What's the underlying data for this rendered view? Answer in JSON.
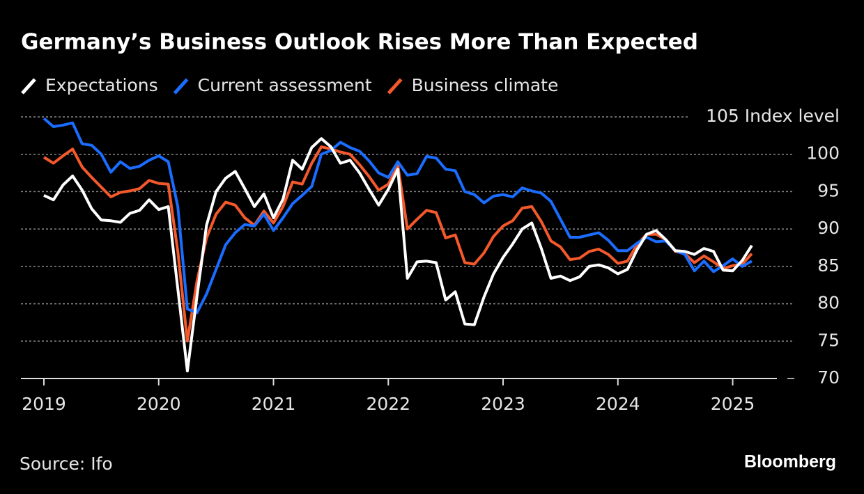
{
  "chart_data": {
    "type": "line",
    "title": "Germany’s Business Outlook Rises More Than Expected",
    "source": "Source: Ifo",
    "brand": "Bloomberg",
    "categories": [
      "2019",
      null,
      null,
      null,
      null,
      null,
      null,
      null,
      null,
      null,
      null,
      null,
      "2020",
      null,
      null,
      null,
      null,
      null,
      null,
      null,
      null,
      null,
      null,
      null,
      "2021",
      null,
      null,
      null,
      null,
      null,
      null,
      null,
      null,
      null,
      null,
      null,
      "2022",
      null,
      null,
      null,
      null,
      null,
      null,
      null,
      null,
      null,
      null,
      null,
      "2023",
      null,
      null,
      null,
      null,
      null,
      null,
      null,
      null,
      null,
      null,
      null,
      "2024",
      null,
      null,
      null,
      null,
      null,
      null,
      null,
      null,
      null,
      null,
      null,
      "2025",
      null,
      null
    ],
    "series": [
      {
        "name": "Expectations",
        "color": "#ffffff",
        "values": [
          94.5,
          93.9,
          95.9,
          97.1,
          95.2,
          92.7,
          91.2,
          91.1,
          90.9,
          92.1,
          92.5,
          93.9,
          92.6,
          93.0,
          82.0,
          71.0,
          81.0,
          90.5,
          95.0,
          96.8,
          97.7,
          95.4,
          93.0,
          94.7,
          91.5,
          94.0,
          99.2,
          98.0,
          100.9,
          102.1,
          101.0,
          98.8,
          99.2,
          97.5,
          95.3,
          93.2,
          95.3,
          98.0,
          83.4,
          85.6,
          85.7,
          85.5,
          80.5,
          81.6,
          77.3,
          77.2,
          80.9,
          84.0,
          86.2,
          88.0,
          90.0,
          90.8,
          87.4,
          83.4,
          83.7,
          83.1,
          83.6,
          85.0,
          85.2,
          84.8,
          84.0,
          84.6,
          87.2,
          89.3,
          89.8,
          88.6,
          87.1,
          87.0,
          86.6,
          87.4,
          87.0,
          84.5,
          84.4,
          85.8,
          87.8
        ]
      },
      {
        "name": "Current assessment",
        "color": "#1a6dff",
        "values": [
          104.8,
          103.7,
          103.9,
          104.2,
          101.4,
          101.2,
          100.0,
          97.6,
          99.0,
          98.1,
          98.4,
          99.2,
          99.8,
          99.0,
          93.0,
          79.3,
          78.8,
          81.3,
          84.6,
          87.9,
          89.5,
          90.6,
          90.4,
          92.0,
          89.8,
          91.5,
          93.4,
          94.5,
          95.7,
          100.0,
          100.5,
          101.6,
          100.9,
          100.4,
          99.1,
          97.5,
          96.9,
          99.0,
          97.2,
          97.4,
          99.7,
          99.5,
          98.0,
          97.8,
          95.0,
          94.6,
          93.5,
          94.4,
          94.6,
          94.3,
          95.5,
          95.1,
          94.8,
          93.7,
          91.3,
          88.9,
          88.9,
          89.2,
          89.5,
          88.5,
          87.1,
          87.1,
          88.1,
          88.9,
          88.3,
          88.4,
          87.1,
          86.6,
          84.4,
          85.7,
          84.3,
          85.1,
          86.0,
          85.0,
          85.7
        ]
      },
      {
        "name": "Business climate",
        "color": "#f4592b",
        "values": [
          99.6,
          98.8,
          99.8,
          100.7,
          98.3,
          96.9,
          95.6,
          94.3,
          94.9,
          95.1,
          95.4,
          96.5,
          96.1,
          96.0,
          87.0,
          75.0,
          83.0,
          88.8,
          92.0,
          93.6,
          93.2,
          91.5,
          90.5,
          92.4,
          90.8,
          93.0,
          96.3,
          96.0,
          98.8,
          101.0,
          100.7,
          100.3,
          100.0,
          98.6,
          97.0,
          95.2,
          96.0,
          98.5,
          90.0,
          91.3,
          92.5,
          92.2,
          88.8,
          89.2,
          85.5,
          85.3,
          86.8,
          89.0,
          90.4,
          91.1,
          92.8,
          93.0,
          91.0,
          88.4,
          87.6,
          85.9,
          86.1,
          87.0,
          87.3,
          86.6,
          85.4,
          85.7,
          87.9,
          89.3,
          89.3,
          88.6,
          87.0,
          86.7,
          85.5,
          86.4,
          85.6,
          84.7,
          85.1,
          85.3,
          86.7
        ]
      }
    ],
    "ylim": [
      70,
      105
    ],
    "yticks": [
      {
        "value": 105,
        "label": "105 Index level"
      },
      100,
      95,
      90,
      85,
      80,
      75,
      70
    ],
    "grid": true,
    "legend": "top-left"
  }
}
